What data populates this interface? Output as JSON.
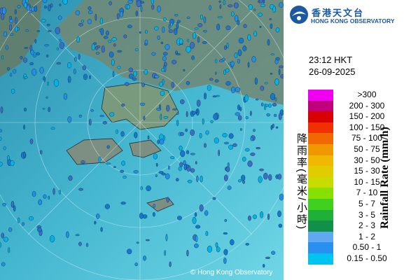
{
  "header": {
    "name_zh": "香港天文台",
    "name_en": "HONG KONG OBSERVATORY"
  },
  "time": "23:12 HKT",
  "date": "26-09-2025",
  "legend": {
    "title_zh": "降雨率(毫米/小時)",
    "title_en": "Rainfall Rate (mm/h)",
    "items": [
      {
        "label": ">300",
        "color": "#f000f0"
      },
      {
        "label": "200 - 300",
        "color": "#c0007c"
      },
      {
        "label": "150 - 200",
        "color": "#d80000"
      },
      {
        "label": "100 - 150",
        "color": "#f03000"
      },
      {
        "label": "75 - 100",
        "color": "#f06800"
      },
      {
        "label": "50 - 75",
        "color": "#f09800"
      },
      {
        "label": "30 - 50",
        "color": "#f0b800"
      },
      {
        "label": "15 - 30",
        "color": "#e0cc00"
      },
      {
        "label": "10 - 15",
        "color": "#c8dc00"
      },
      {
        "label": "7 - 10",
        "color": "#88e000"
      },
      {
        "label": "5 - 7",
        "color": "#40d020"
      },
      {
        "label": "3 - 5",
        "color": "#20b038"
      },
      {
        "label": "2 - 3",
        "color": "#109048"
      },
      {
        "label": "1 - 2",
        "color": "#60a8f0"
      },
      {
        "label": "0.50 - 1",
        "color": "#2890f0"
      },
      {
        "label": "0.15 - 0.50",
        "color": "#00c4f0"
      }
    ]
  },
  "copyright": "© Hong Kong Observatory"
}
